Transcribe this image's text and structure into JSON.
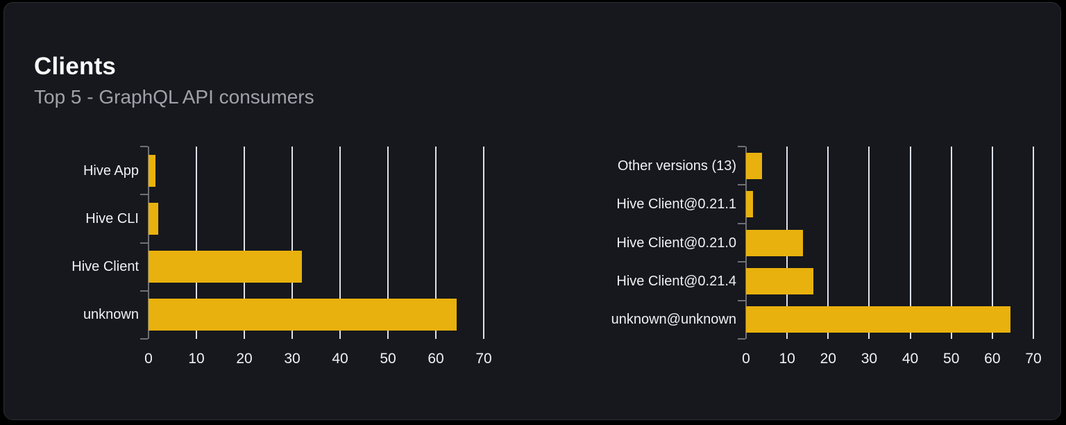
{
  "header": {
    "title": "Clients",
    "subtitle": "Top 5 - GraphQL API consumers"
  },
  "colors": {
    "page_bg": "#000000",
    "card_bg": "#16181d",
    "card_border": "#2b2e34",
    "title_text": "#fafafa",
    "subtitle_text": "#a1a1aa",
    "bar_fill": "#e9b10d",
    "gridline": "#dce1ec",
    "axis": "#6e7076",
    "chart_text": "#eef0f4"
  },
  "chart_data": [
    {
      "type": "bar",
      "orientation": "horizontal",
      "name": "clients-by-name",
      "categories_top_to_bottom": [
        "Hive App",
        "Hive CLI",
        "Hive Client",
        "unknown"
      ],
      "values": [
        1.4,
        2.1,
        32.1,
        64.4
      ],
      "xlim": [
        0,
        70
      ],
      "x_ticks": [
        0,
        10,
        20,
        30,
        40,
        50,
        60,
        70
      ],
      "grid": true,
      "legend": false
    },
    {
      "type": "bar",
      "orientation": "horizontal",
      "name": "clients-by-version",
      "categories_top_to_bottom": [
        "Other versions (13)",
        "Hive Client@0.21.1",
        "Hive Client@0.21.0",
        "Hive Client@0.21.4",
        "unknown@unknown"
      ],
      "values": [
        3.9,
        1.7,
        13.9,
        16.4,
        64.4
      ],
      "xlim": [
        0,
        70
      ],
      "x_ticks": [
        0,
        10,
        20,
        30,
        40,
        50,
        60,
        70
      ],
      "grid": true,
      "legend": false
    }
  ]
}
